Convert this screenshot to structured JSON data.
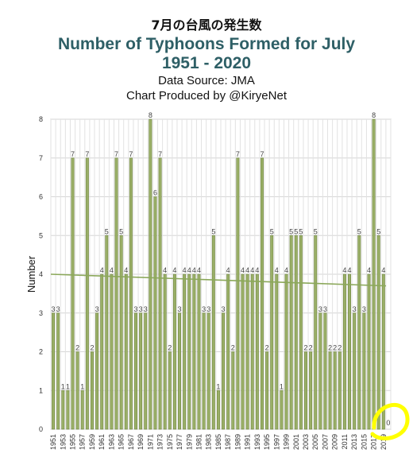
{
  "chart_data": {
    "type": "bar",
    "title_jp": "7月の台風の発生数",
    "title": "Number of Typhoons Formed for July",
    "years_label": "1951  - 2020",
    "source": "Data Source: JMA",
    "credit": "Chart Produced by @KiryeNet",
    "ylabel": "Number",
    "xlabel": "",
    "ylim": [
      0,
      8
    ],
    "yticks": [
      0,
      1,
      2,
      3,
      4,
      5,
      6,
      7,
      8
    ],
    "x": [
      1951,
      1952,
      1953,
      1954,
      1955,
      1956,
      1957,
      1958,
      1959,
      1960,
      1961,
      1962,
      1963,
      1964,
      1965,
      1966,
      1967,
      1968,
      1969,
      1970,
      1971,
      1972,
      1973,
      1974,
      1975,
      1976,
      1977,
      1978,
      1979,
      1980,
      1981,
      1982,
      1983,
      1984,
      1985,
      1986,
      1987,
      1988,
      1989,
      1990,
      1991,
      1992,
      1993,
      1994,
      1995,
      1996,
      1997,
      1998,
      1999,
      2000,
      2001,
      2002,
      2003,
      2004,
      2005,
      2006,
      2007,
      2008,
      2009,
      2010,
      2011,
      2012,
      2013,
      2014,
      2015,
      2016,
      2017,
      2018,
      2019,
      2020
    ],
    "values": [
      3,
      3,
      1,
      1,
      7,
      2,
      1,
      7,
      2,
      3,
      4,
      5,
      4,
      7,
      5,
      4,
      7,
      3,
      3,
      3,
      8,
      6,
      7,
      4,
      2,
      4,
      3,
      4,
      4,
      4,
      4,
      3,
      3,
      5,
      1,
      3,
      4,
      2,
      7,
      4,
      4,
      4,
      4,
      7,
      2,
      5,
      4,
      1,
      4,
      5,
      5,
      5,
      2,
      2,
      5,
      3,
      3,
      2,
      2,
      2,
      4,
      4,
      3,
      5,
      3,
      4,
      8,
      5,
      4,
      0
    ],
    "xtick_labels": [
      "1951",
      "1953",
      "1955",
      "1957",
      "1959",
      "1961",
      "1963",
      "1965",
      "1967",
      "1969",
      "1971",
      "1973",
      "1975",
      "1977",
      "1979",
      "1981",
      "1983",
      "1985",
      "1987",
      "1989",
      "1991",
      "1993",
      "1995",
      "1997",
      "1999",
      "2001",
      "2003",
      "2005",
      "2007",
      "2009",
      "2011",
      "2013",
      "2015",
      "2017",
      "2019"
    ],
    "trend": {
      "start": 4.0,
      "end": 3.7
    },
    "grid": true,
    "colors": {
      "bar_fill": "#9aaf67",
      "bar_stroke": "#6f8540",
      "trend": "#8ba85a",
      "title": "#2e5f66",
      "highlight": "#ffff00"
    }
  }
}
